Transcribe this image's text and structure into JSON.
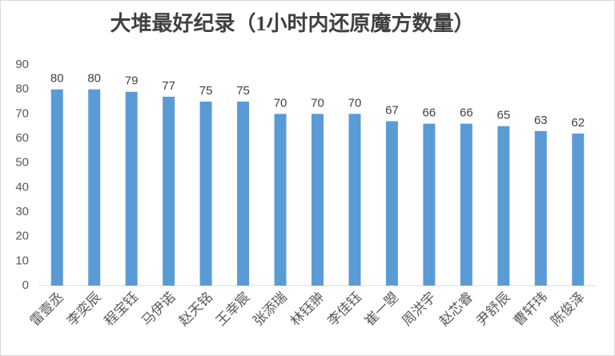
{
  "chart_data": {
    "type": "bar",
    "title": "大堆最好纪录（1小时内还原魔方数量）",
    "categories": [
      "雷壹丞",
      "李奕辰",
      "程宝钰",
      "马伊诺",
      "赵天铭",
      "王幸宸",
      "张添瑞",
      "林钰翀",
      "李佳钰",
      "崔一曌",
      "周洪宇",
      "赵芯睿",
      "尹舒辰",
      "曹轩玮",
      "陈俊泽"
    ],
    "values": [
      80,
      80,
      79,
      77,
      75,
      75,
      70,
      70,
      70,
      67,
      66,
      66,
      65,
      63,
      62
    ],
    "color": "#5b9bd5",
    "ylim": [
      0,
      90
    ],
    "yticks": [
      0,
      10,
      20,
      30,
      40,
      50,
      60,
      70,
      80,
      90
    ],
    "grid": false,
    "data_labels": true
  }
}
